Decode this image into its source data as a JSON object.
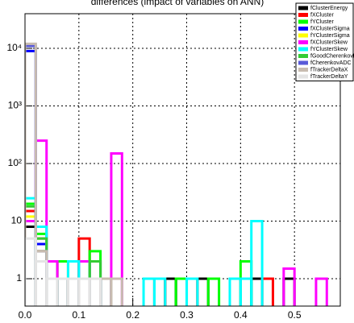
{
  "chart_data": {
    "type": "histogram",
    "title": "differences (impact of variables on ANN)",
    "bins": [
      0,
      0.02,
      0.04,
      0.06,
      0.08,
      0.1,
      0.12,
      0.14,
      0.16,
      0.18,
      0.2,
      0.22,
      0.24,
      0.26,
      0.28,
      0.3,
      0.32,
      0.34,
      0.36,
      0.38,
      0.4,
      0.42,
      0.44,
      0.46,
      0.48,
      0.5,
      0.52,
      0.54,
      0.56,
      0.58
    ],
    "series": [
      {
        "name": "fClusterEnergy",
        "color": "#000000",
        "values": [
          8,
          3,
          1,
          1,
          1,
          1,
          1,
          1,
          0,
          0,
          0,
          0,
          0,
          1,
          1,
          0,
          1,
          0,
          0,
          0,
          1,
          1,
          0,
          0,
          1,
          0,
          0,
          0,
          0
        ]
      },
      {
        "name": "fXCluster",
        "color": "#ff0000",
        "values": [
          15,
          5,
          1,
          2,
          2,
          5,
          2,
          1,
          0,
          0,
          0,
          0,
          1,
          0,
          0,
          1,
          0,
          0,
          0,
          0,
          0,
          0,
          1,
          0,
          0,
          0,
          0,
          0,
          0
        ]
      },
      {
        "name": "fYCluster",
        "color": "#00ff00",
        "values": [
          20,
          6,
          1,
          2,
          1,
          2,
          3,
          1,
          0,
          0,
          0,
          0,
          0,
          0,
          1,
          0,
          0,
          1,
          0,
          0,
          2,
          0,
          0,
          0,
          0,
          0,
          0,
          0,
          0
        ]
      },
      {
        "name": "fXClusterSigma",
        "color": "#0000ff",
        "values": [
          9000,
          4,
          1,
          1,
          1,
          1,
          1,
          0,
          0,
          0,
          0,
          0,
          0,
          0,
          0,
          0,
          0,
          0,
          0,
          0,
          0,
          0,
          0,
          0,
          0,
          0,
          0,
          0,
          0
        ]
      },
      {
        "name": "fYClusterSigma",
        "color": "#ffff00",
        "values": [
          12,
          3,
          1,
          1,
          1,
          1,
          1,
          0,
          0,
          0,
          0,
          0,
          0,
          0,
          0,
          0,
          0,
          0,
          0,
          0,
          0,
          0,
          0,
          0,
          0,
          0,
          0,
          0,
          0
        ]
      },
      {
        "name": "fXClusterSkew",
        "color": "#ff00ff",
        "values": [
          10,
          250,
          2,
          1,
          1,
          2,
          1,
          1,
          150,
          0,
          0,
          0,
          0,
          0,
          0,
          0,
          0,
          0,
          0,
          0,
          0,
          0,
          0,
          0,
          1.5,
          0,
          0,
          1,
          0
        ]
      },
      {
        "name": "fYClusterSkew",
        "color": "#00ffff",
        "values": [
          25,
          8,
          1,
          1,
          2,
          1,
          2,
          1,
          0,
          0,
          0,
          1,
          1,
          0,
          0,
          1,
          0,
          0,
          0,
          1,
          1,
          10,
          0,
          0,
          0,
          0,
          0,
          0,
          0
        ]
      },
      {
        "name": "fGoodCherenkovHit",
        "color": "#33cc33",
        "values": [
          18,
          5,
          1,
          1,
          1,
          1,
          2,
          0,
          0,
          0,
          0,
          0,
          0,
          0,
          0,
          0,
          0,
          0,
          0,
          0,
          0,
          0,
          0,
          0,
          0,
          0,
          0,
          0,
          0
        ]
      },
      {
        "name": "fCherenkovADC",
        "color": "#5a5ad8",
        "values": [
          11000,
          3,
          1,
          1,
          1,
          1,
          1,
          0,
          0,
          0,
          0,
          0,
          0,
          0,
          0,
          0,
          0,
          0,
          0,
          0,
          0,
          0,
          0,
          0,
          0,
          0,
          0,
          0,
          0
        ]
      },
      {
        "name": "fTrackerDeltaX",
        "color": "#c8bcb0",
        "values": [
          12000,
          3,
          1,
          1,
          1,
          1,
          1,
          1,
          1,
          0,
          0,
          0,
          0,
          0,
          0,
          0,
          0,
          0,
          0,
          0,
          0,
          0,
          0,
          0,
          0,
          0,
          0,
          0,
          0
        ]
      },
      {
        "name": "fTrackerDeltaY",
        "color": "#e4e4e4",
        "values": [
          5,
          2,
          1,
          1,
          1,
          1,
          1,
          0,
          0,
          0,
          0,
          0,
          0,
          0,
          0,
          0,
          0,
          0,
          0,
          0,
          0,
          0,
          0,
          0,
          0,
          0,
          0,
          0,
          0
        ]
      }
    ],
    "xlim": [
      0,
      0.585
    ],
    "ylim": [
      0.335,
      40000
    ],
    "log_y": true,
    "grid": true,
    "legend": "top-right",
    "xticks": [
      {
        "value": 0,
        "label": "0.0"
      },
      0.1,
      0.2,
      0.3,
      0.4,
      0.5
    ],
    "yticks": [
      1,
      10,
      {
        "value": 100,
        "label": "10²"
      },
      {
        "value": 1000,
        "label": "10³"
      },
      {
        "value": 10000,
        "label": "10⁴"
      }
    ]
  }
}
